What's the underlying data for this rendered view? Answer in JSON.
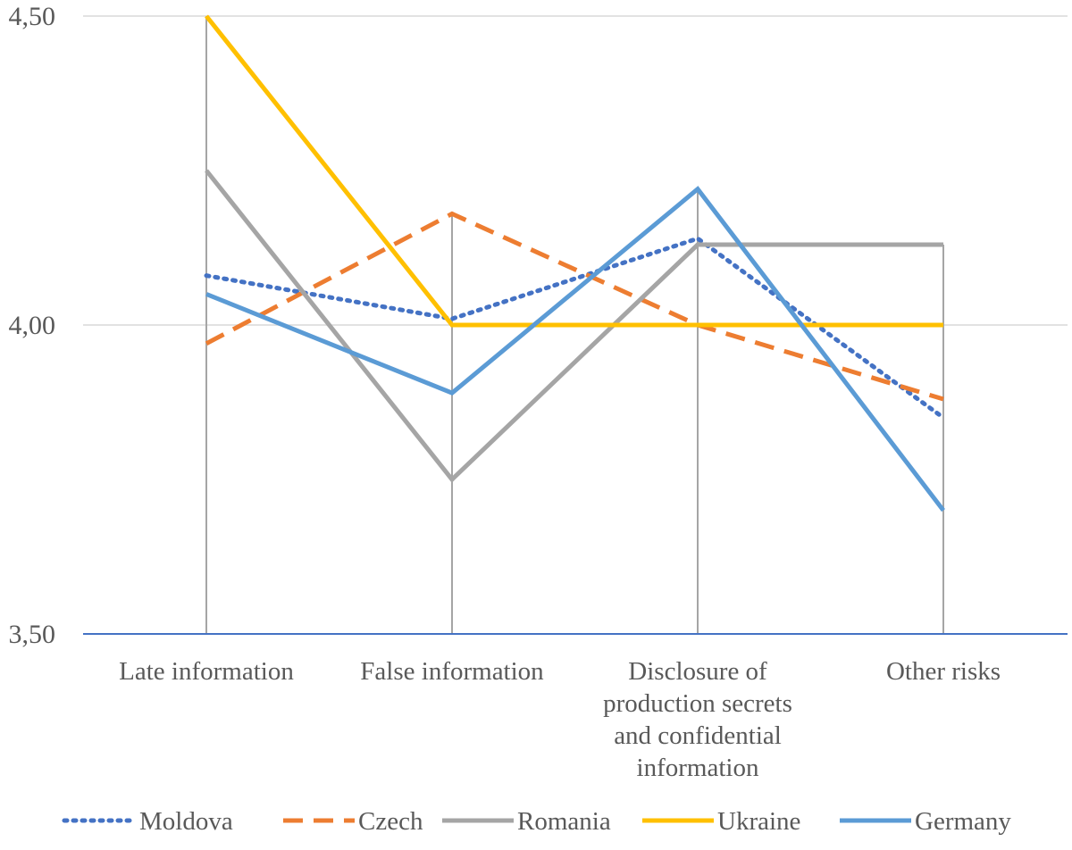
{
  "chart_data": {
    "type": "line",
    "title": "",
    "xlabel": "",
    "ylabel": "",
    "ylim": [
      3.5,
      4.5
    ],
    "yticks": [
      {
        "value": 4.5,
        "label": "4,50"
      },
      {
        "value": 4.0,
        "label": "4,00"
      },
      {
        "value": 3.5,
        "label": "3,50"
      }
    ],
    "grid": true,
    "legend_position": "bottom",
    "categories": [
      [
        "Late information"
      ],
      [
        "False information"
      ],
      [
        "Disclosure of",
        "production secrets",
        "and confidential",
        "information"
      ],
      [
        "Other risks"
      ]
    ],
    "series": [
      {
        "name": "Moldova",
        "values": [
          4.08,
          4.01,
          4.14,
          3.85
        ],
        "color": "#4472C4",
        "style": "dotted"
      },
      {
        "name": "Czech",
        "values": [
          3.97,
          4.18,
          4.0,
          3.88
        ],
        "color": "#ED7D31",
        "style": "dashed"
      },
      {
        "name": "Romania",
        "values": [
          4.25,
          3.75,
          4.13,
          4.13
        ],
        "color": "#A5A5A5",
        "style": "solid"
      },
      {
        "name": "Ukraine",
        "values": [
          4.5,
          4.0,
          4.0,
          4.0
        ],
        "color": "#FFC000",
        "style": "solid"
      },
      {
        "name": "Germany",
        "values": [
          4.05,
          3.89,
          4.22,
          3.7
        ],
        "color": "#5B9BD5",
        "style": "solid"
      }
    ],
    "colors": {
      "axis": "#4472C4",
      "gridline": "#D9D9D9",
      "drop_line": "#A5A5A5",
      "text": "#595959"
    }
  }
}
